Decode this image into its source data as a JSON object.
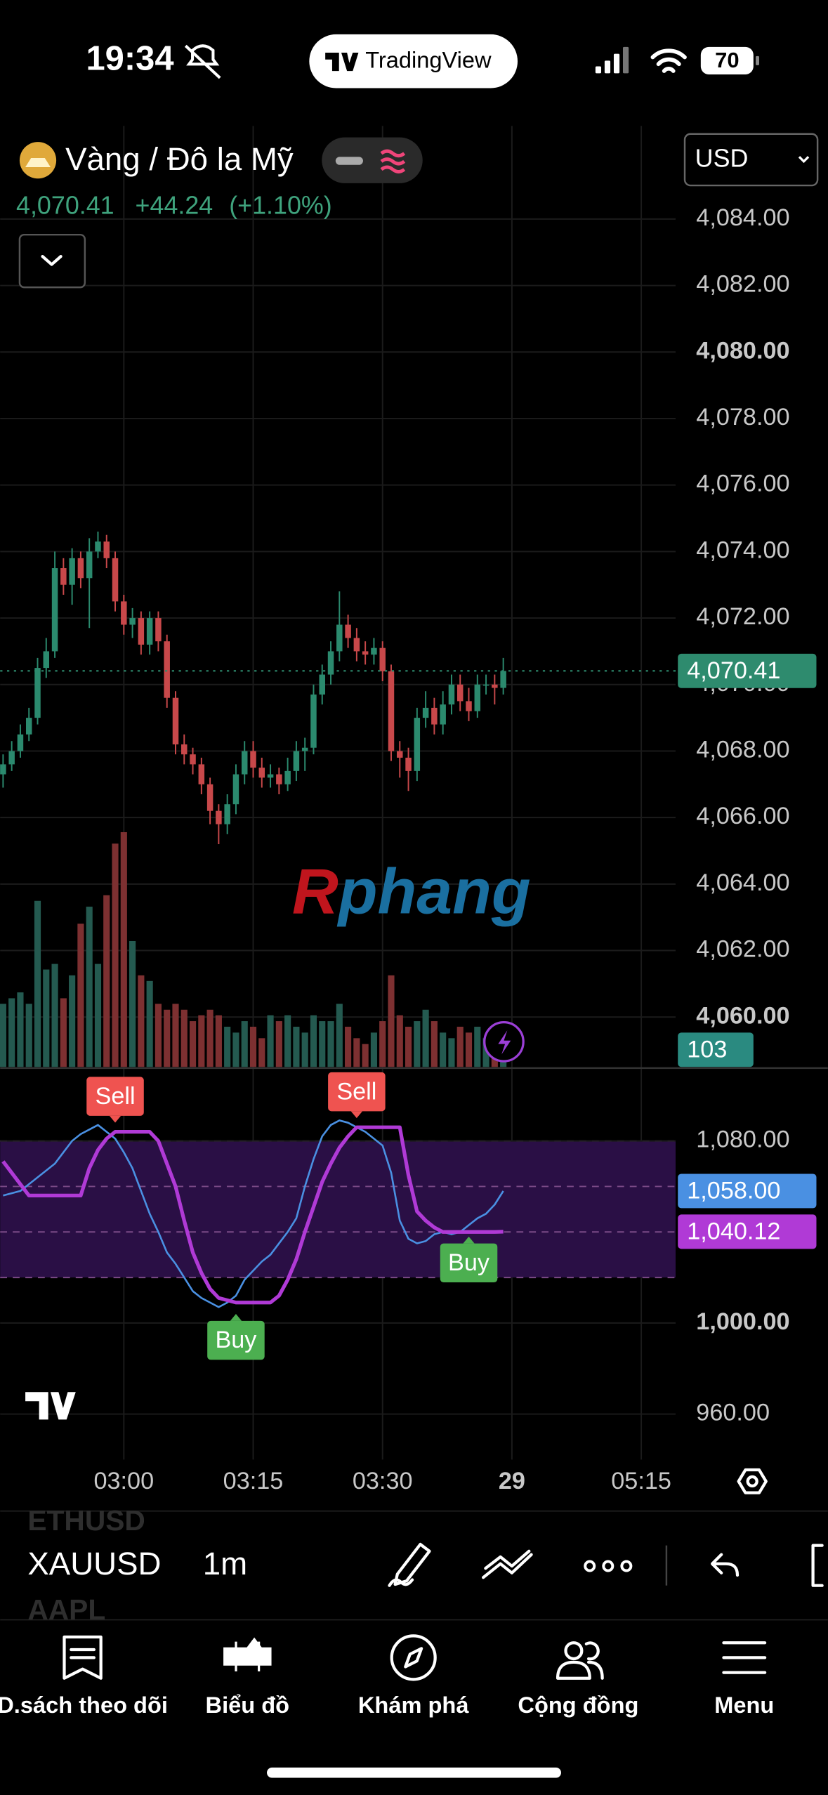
{
  "status_bar": {
    "time": "19:34",
    "app": "TradingView",
    "battery": "70"
  },
  "header": {
    "symbol_name": "Vàng / Đô la Mỹ",
    "price": "4,070.41",
    "change": "+44.24",
    "change_percent": "(+1.10%)",
    "currency": "USD"
  },
  "watermark": [
    "R",
    "phang"
  ],
  "chart_data": [
    {
      "type": "candlestick",
      "up_color": "#2b8a6e",
      "down_color": "#c8484a",
      "grid": true,
      "x": [
        166,
        167,
        168,
        169,
        170,
        171,
        172,
        173,
        174,
        175,
        176,
        177,
        178,
        179,
        180,
        181,
        182,
        183,
        184,
        185,
        186,
        187,
        188,
        189,
        190,
        191,
        192,
        193,
        194,
        195,
        196,
        197,
        198,
        199,
        200,
        201,
        202,
        203,
        204,
        205,
        206,
        207,
        208,
        209,
        210,
        211,
        212,
        213,
        214,
        215,
        216,
        217,
        218,
        219,
        220,
        221,
        222,
        223,
        224
      ],
      "open": [
        4067.3,
        4067.6,
        4068.0,
        4068.5,
        4069.0,
        4070.5,
        4071.0,
        4073.5,
        4073.0,
        4073.8,
        4073.2,
        4074.0,
        4074.3,
        4073.8,
        4072.5,
        4071.8,
        4072.0,
        4071.2,
        4072.0,
        4071.3,
        4069.6,
        4068.2,
        4067.9,
        4067.6,
        4067.0,
        4066.2,
        4065.8,
        4066.4,
        4067.3,
        4068.0,
        4067.5,
        4067.2,
        4067.3,
        4067.0,
        4067.4,
        4068.0,
        4068.1,
        4069.7,
        4070.3,
        4071.0,
        4071.8,
        4071.4,
        4071.0,
        4070.9,
        4071.1,
        4070.4,
        4068.0,
        4067.8,
        4067.4,
        4069.0,
        4069.3,
        4068.8,
        4069.4,
        4070.0,
        4069.5,
        4069.2,
        4070.0,
        4070.0,
        4069.9
      ],
      "high": [
        4067.9,
        4068.3,
        4068.8,
        4069.3,
        4070.8,
        4071.4,
        4074.0,
        4073.8,
        4074.1,
        4074.0,
        4074.4,
        4074.6,
        4074.5,
        4074.0,
        4072.7,
        4072.3,
        4072.2,
        4072.2,
        4072.2,
        4071.5,
        4069.8,
        4068.5,
        4068.1,
        4067.8,
        4067.2,
        4066.4,
        4066.7,
        4067.6,
        4068.3,
        4068.3,
        4067.8,
        4067.6,
        4067.5,
        4067.8,
        4068.3,
        4068.4,
        4070.0,
        4070.6,
        4071.3,
        4072.8,
        4072.1,
        4071.7,
        4071.3,
        4071.4,
        4071.3,
        4070.6,
        4068.3,
        4068.1,
        4069.3,
        4069.8,
        4069.6,
        4069.8,
        4070.3,
        4070.3,
        4069.9,
        4070.3,
        4070.3,
        4070.3,
        4070.8
      ],
      "low": [
        4066.9,
        4067.4,
        4067.8,
        4068.3,
        4068.8,
        4070.2,
        4070.8,
        4072.7,
        4072.4,
        4072.9,
        4071.7,
        4073.8,
        4073.5,
        4072.2,
        4071.5,
        4071.4,
        4070.9,
        4070.9,
        4071.0,
        4069.3,
        4067.9,
        4067.6,
        4067.3,
        4066.7,
        4065.8,
        4065.2,
        4065.5,
        4066.1,
        4067.0,
        4067.2,
        4066.9,
        4066.9,
        4066.7,
        4066.8,
        4067.1,
        4067.4,
        4067.9,
        4069.4,
        4070.0,
        4070.7,
        4071.1,
        4070.7,
        4070.6,
        4070.6,
        4070.1,
        4067.7,
        4067.2,
        4066.8,
        4067.1,
        4068.7,
        4068.5,
        4068.5,
        4069.1,
        4069.2,
        4068.9,
        4069.0,
        4069.7,
        4069.4,
        4069.7
      ],
      "close": [
        4067.6,
        4068.0,
        4068.5,
        4069.0,
        4070.5,
        4071.0,
        4073.5,
        4073.0,
        4073.8,
        4073.2,
        4074.0,
        4074.3,
        4073.8,
        4072.5,
        4071.8,
        4072.0,
        4071.2,
        4072.0,
        4071.3,
        4069.6,
        4068.2,
        4067.9,
        4067.6,
        4067.0,
        4066.2,
        4065.8,
        4066.4,
        4067.3,
        4068.0,
        4067.5,
        4067.2,
        4067.3,
        4067.0,
        4067.4,
        4068.0,
        4068.1,
        4069.7,
        4070.3,
        4071.0,
        4071.8,
        4071.4,
        4071.0,
        4070.9,
        4071.1,
        4070.4,
        4068.0,
        4067.8,
        4067.4,
        4069.0,
        4069.3,
        4068.8,
        4069.4,
        4070.0,
        4069.5,
        4069.2,
        4070.0,
        4070.0,
        4069.9,
        4070.41
      ],
      "xlim": [
        165.66,
        243.98
      ],
      "ylim": [
        4058.5,
        4086.8
      ],
      "xticks": [
        {
          "value": 180,
          "label": "03:00"
        },
        {
          "value": 195,
          "label": "03:15"
        },
        {
          "value": 210,
          "label": "03:30"
        },
        {
          "value": 225,
          "label": "29",
          "bold": true
        },
        {
          "value": 240,
          "label": "05:15"
        }
      ],
      "yticks": [
        {
          "value": 4084,
          "label": "4,084.00"
        },
        {
          "value": 4082,
          "label": "4,082.00"
        },
        {
          "value": 4080,
          "label": "4,080.00",
          "bold": true
        },
        {
          "value": 4078,
          "label": "4,078.00"
        },
        {
          "value": 4076,
          "label": "4,076.00"
        },
        {
          "value": 4074,
          "label": "4,074.00"
        },
        {
          "value": 4072,
          "label": "4,072.00"
        },
        {
          "value": 4070,
          "label": "4,070.00"
        },
        {
          "value": 4068,
          "label": "4,068.00"
        },
        {
          "value": 4066,
          "label": "4,066.00"
        },
        {
          "value": 4064,
          "label": "4,064.00"
        },
        {
          "value": 4062,
          "label": "4,062.00"
        },
        {
          "value": 4060,
          "label": "4,060.00",
          "bold": true
        }
      ],
      "last_price": {
        "value": 4070.41,
        "label": "4,070.41"
      },
      "last_color": "#2e8b6e"
    },
    {
      "type": "volume",
      "up_color": "#245a50",
      "down_color": "#7d3031",
      "ylim": [
        0,
        1200
      ],
      "last_value": 103,
      "last_color": "#2a8a80",
      "values": [
        237,
        258,
        280,
        237,
        624,
        366,
        387,
        258,
        344,
        538,
        602,
        387,
        645,
        839,
        882,
        473,
        344,
        323,
        237,
        215,
        237,
        215,
        172,
        194,
        215,
        194,
        151,
        129,
        172,
        151,
        108,
        194,
        172,
        194,
        151,
        129,
        194,
        172,
        172,
        237,
        151,
        108,
        86,
        129,
        172,
        344,
        194,
        151,
        172,
        215,
        172,
        129,
        108,
        151,
        129,
        151,
        108,
        86,
        103
      ]
    },
    {
      "type": "line",
      "ylim": [
        940,
        1111
      ],
      "band": [
        1020,
        1080
      ],
      "band_color": "#2a0f45",
      "levels": [
        1080,
        1060,
        1040,
        1020
      ],
      "yticks": [
        {
          "value": 1080,
          "label": "1,080.00"
        },
        {
          "value": 1000,
          "label": "1,000.00",
          "bold": true
        },
        {
          "value": 960,
          "label": "960.00"
        }
      ],
      "series": [
        {
          "color": "#4a90e2",
          "last_label": "1,058.00",
          "values": [
            1056,
            1057,
            1058,
            1061,
            1064,
            1067,
            1070,
            1075,
            1080,
            1083,
            1085,
            1087,
            1084,
            1081,
            1075,
            1068,
            1058,
            1048,
            1040,
            1031,
            1026,
            1020,
            1014,
            1011,
            1009,
            1007,
            1009,
            1012,
            1019,
            1023,
            1027,
            1030,
            1035,
            1040,
            1046,
            1060,
            1072,
            1082,
            1087,
            1089,
            1088,
            1086,
            1084,
            1081,
            1078,
            1066,
            1045,
            1037,
            1035,
            1036,
            1039,
            1040,
            1039,
            1040,
            1043,
            1046,
            1048,
            1052,
            1058
          ]
        },
        {
          "color": "#b03ad6",
          "last_label": "1,040.12",
          "values": [
            1071,
            1066,
            1061,
            1056,
            1056,
            1056,
            1056,
            1056,
            1056,
            1056,
            1068,
            1076,
            1081,
            1084,
            1084,
            1084,
            1084,
            1084,
            1080,
            1070,
            1060,
            1045,
            1031,
            1022,
            1015,
            1011,
            1010,
            1009,
            1009,
            1009,
            1009,
            1009,
            1012,
            1019,
            1028,
            1040,
            1051,
            1062,
            1070,
            1077,
            1082,
            1086,
            1086,
            1086,
            1086,
            1086,
            1086,
            1065,
            1049,
            1045,
            1042,
            1040,
            1040,
            1040,
            1040,
            1040,
            1040,
            1040,
            1040.12
          ]
        }
      ],
      "signals": [
        {
          "text": "Sell",
          "x": 179,
          "y": 1084
        },
        {
          "text": "Buy",
          "x": 193,
          "y": 1009
        },
        {
          "text": "Sell",
          "x": 207,
          "y": 1086
        },
        {
          "text": "Buy",
          "x": 220,
          "y": 1043
        }
      ]
    }
  ],
  "toolbar": {
    "symbols": [
      "ETHUSD",
      "XAUUSD",
      "AAPL"
    ],
    "interval": "1m"
  },
  "tabs": [
    "D.sách theo dõi",
    "Biểu đồ",
    "Khám phá",
    "Cộng đồng",
    "Menu"
  ]
}
